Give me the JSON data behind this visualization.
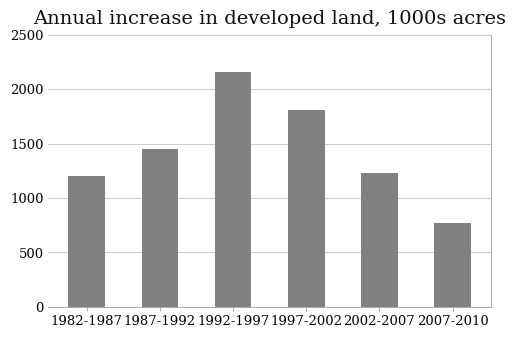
{
  "title": "Annual increase in developed land, 1000s acres",
  "categories": [
    "1982-1987",
    "1987-1992",
    "1992-1997",
    "1997-2002",
    "2002-2007",
    "2007-2010"
  ],
  "values": [
    1200,
    1450,
    2160,
    1810,
    1230,
    770
  ],
  "bar_color": "#808080",
  "background_color": "#ffffff",
  "ylim": [
    0,
    2500
  ],
  "yticks": [
    0,
    500,
    1000,
    1500,
    2000,
    2500
  ],
  "title_fontsize": 14,
  "tick_fontsize": 9.5
}
